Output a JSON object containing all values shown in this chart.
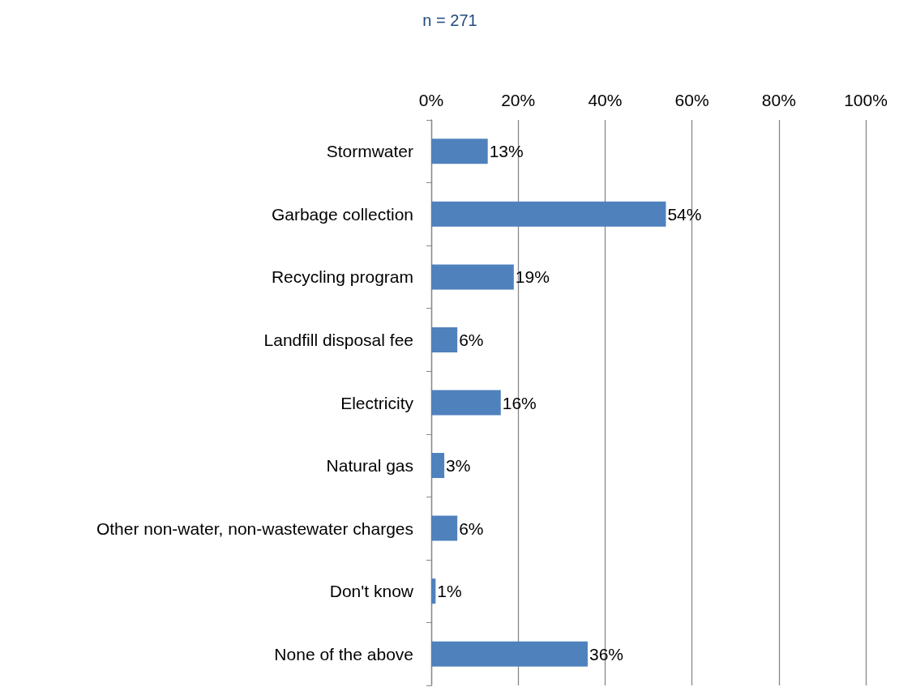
{
  "chart_data": {
    "type": "bar",
    "orientation": "horizontal",
    "title": "n = 271",
    "categories": [
      "Stormwater",
      "Garbage collection",
      "Recycling program",
      "Landfill disposal fee",
      "Electricity",
      "Natural gas",
      "Other non-water, non-wastewater charges",
      "Don't know",
      "None of the above"
    ],
    "values": [
      13,
      54,
      19,
      6,
      16,
      3,
      6,
      1,
      36
    ],
    "value_labels": [
      "13%",
      "54%",
      "19%",
      "6%",
      "16%",
      "3%",
      "6%",
      "1%",
      "36%"
    ],
    "color": "#4f81bd",
    "xlim": [
      0,
      100
    ],
    "xticks": [
      {
        "value": 0,
        "label": "0%"
      },
      {
        "value": 20,
        "label": "20%"
      },
      {
        "value": 40,
        "label": "40%"
      },
      {
        "value": 60,
        "label": "60%"
      },
      {
        "value": 80,
        "label": "80%"
      },
      {
        "value": 100,
        "label": "100%"
      }
    ],
    "grid": "x"
  }
}
